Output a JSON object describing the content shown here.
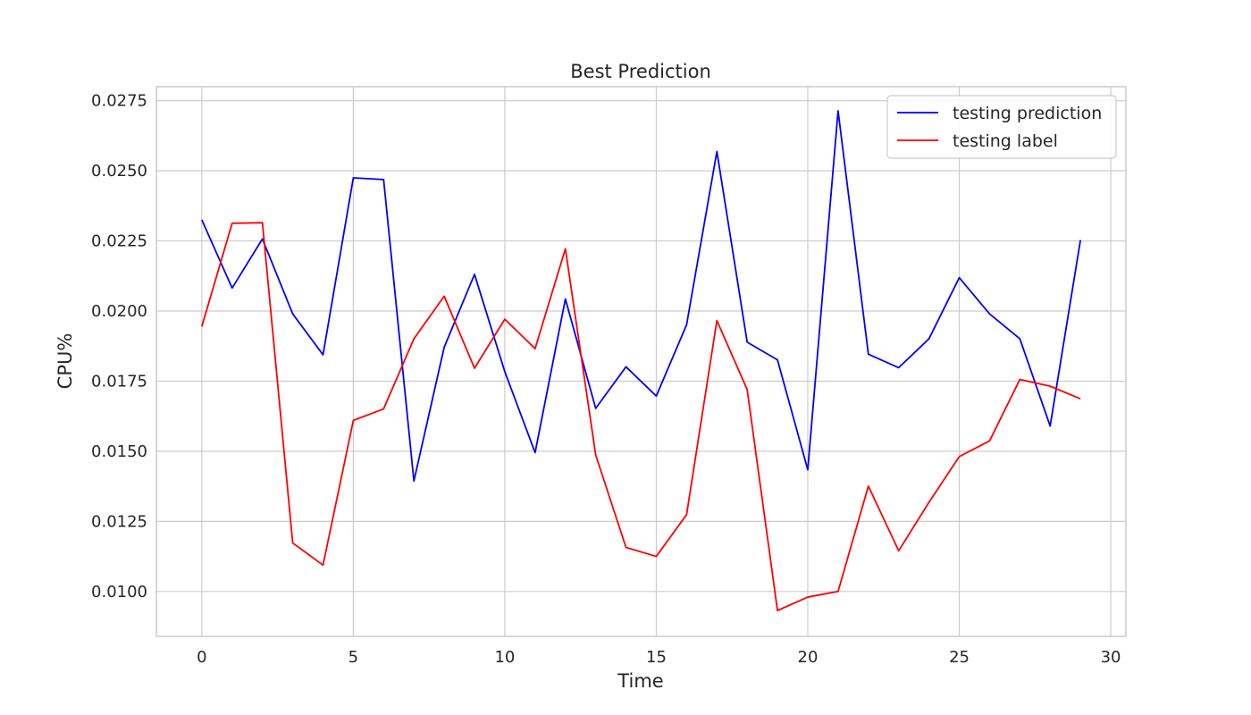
{
  "chart_data": {
    "type": "line",
    "title": "Best Prediction",
    "xlabel": "Time",
    "ylabel": "CPU%",
    "xlim": [
      -1.5,
      30.5
    ],
    "ylim": [
      0.0084,
      0.028
    ],
    "x_ticks": [
      0,
      5,
      10,
      15,
      20,
      25,
      30
    ],
    "x_tick_labels": [
      "0",
      "5",
      "10",
      "15",
      "20",
      "25",
      "30"
    ],
    "y_ticks": [
      0.01,
      0.0125,
      0.015,
      0.0175,
      0.02,
      0.0225,
      0.025,
      0.0275
    ],
    "y_tick_labels": [
      "0.0100",
      "0.0125",
      "0.0150",
      "0.0175",
      "0.0200",
      "0.0225",
      "0.0250",
      "0.0275"
    ],
    "grid": true,
    "legend_position": "top-right",
    "x": [
      0,
      1,
      2,
      3,
      4,
      5,
      6,
      7,
      8,
      9,
      10,
      11,
      12,
      13,
      14,
      15,
      16,
      17,
      18,
      19,
      20,
      21,
      22,
      23,
      24,
      25,
      26,
      27,
      28,
      29
    ],
    "series": [
      {
        "name": "testing prediction",
        "color": "#0000ff",
        "values": [
          0.02325,
          0.02082,
          0.02257,
          0.0199,
          0.01844,
          0.02475,
          0.02469,
          0.01394,
          0.01871,
          0.02131,
          0.01784,
          0.01495,
          0.02043,
          0.01653,
          0.01801,
          0.01697,
          0.01951,
          0.02569,
          0.01889,
          0.01826,
          0.01434,
          0.02714,
          0.01846,
          0.01798,
          0.01901,
          0.02119,
          0.0199,
          0.01901,
          0.0159,
          0.02253
        ]
      },
      {
        "name": "testing label",
        "color": "#ff0000",
        "values": [
          0.01945,
          0.02313,
          0.02315,
          0.01173,
          0.01094,
          0.0161,
          0.01651,
          0.01901,
          0.02053,
          0.01796,
          0.01971,
          0.01866,
          0.02222,
          0.01487,
          0.01157,
          0.01125,
          0.01274,
          0.01966,
          0.0172,
          0.00932,
          0.0098,
          0.01,
          0.01376,
          0.01145,
          0.01318,
          0.01481,
          0.01537,
          0.01756,
          0.01732,
          0.01687
        ]
      }
    ]
  }
}
